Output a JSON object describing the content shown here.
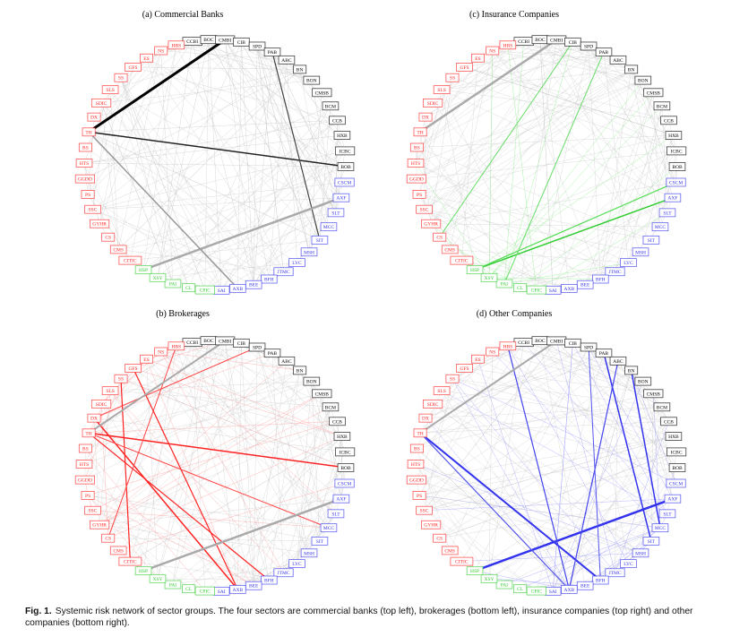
{
  "colors": {
    "banks": "#000000",
    "brokerages": "#ff2020",
    "insurance": "#33cc33",
    "others": "#3333ee",
    "background_edge": "#c8c8c8"
  },
  "nodes": [
    {
      "id": "CCBI",
      "g": "banks"
    },
    {
      "id": "BOC",
      "g": "banks"
    },
    {
      "id": "CMBI",
      "g": "banks"
    },
    {
      "id": "CIB",
      "g": "banks"
    },
    {
      "id": "SPD",
      "g": "banks"
    },
    {
      "id": "PAB",
      "g": "banks"
    },
    {
      "id": "ABC",
      "g": "banks"
    },
    {
      "id": "BN",
      "g": "banks"
    },
    {
      "id": "BON",
      "g": "banks"
    },
    {
      "id": "CMSB",
      "g": "banks"
    },
    {
      "id": "BCM",
      "g": "banks"
    },
    {
      "id": "CCB",
      "g": "banks"
    },
    {
      "id": "HXB",
      "g": "banks"
    },
    {
      "id": "ICBC",
      "g": "banks"
    },
    {
      "id": "BOB",
      "g": "banks"
    },
    {
      "id": "CSCM",
      "g": "others"
    },
    {
      "id": "AXF",
      "g": "others"
    },
    {
      "id": "SLT",
      "g": "others"
    },
    {
      "id": "MCC",
      "g": "others"
    },
    {
      "id": "SIT",
      "g": "others"
    },
    {
      "id": "MSH",
      "g": "others"
    },
    {
      "id": "LYC",
      "g": "others"
    },
    {
      "id": "JTMC",
      "g": "others"
    },
    {
      "id": "BFH",
      "g": "others"
    },
    {
      "id": "BEE",
      "g": "others"
    },
    {
      "id": "AXB",
      "g": "others"
    },
    {
      "id": "SAI",
      "g": "others"
    },
    {
      "id": "CPIC",
      "g": "insurance"
    },
    {
      "id": "CL",
      "g": "insurance"
    },
    {
      "id": "PAI",
      "g": "insurance"
    },
    {
      "id": "XSY",
      "g": "insurance"
    },
    {
      "id": "HSP",
      "g": "insurance"
    },
    {
      "id": "CITIC",
      "g": "brokerages"
    },
    {
      "id": "CMS",
      "g": "brokerages"
    },
    {
      "id": "CS",
      "g": "brokerages"
    },
    {
      "id": "GYHR",
      "g": "brokerages"
    },
    {
      "id": "SSC",
      "g": "brokerages"
    },
    {
      "id": "PS",
      "g": "brokerages"
    },
    {
      "id": "GGDD",
      "g": "brokerages"
    },
    {
      "id": "HTS",
      "g": "brokerages"
    },
    {
      "id": "BS",
      "g": "brokerages"
    },
    {
      "id": "TH",
      "g": "brokerages"
    },
    {
      "id": "DX",
      "g": "brokerages"
    },
    {
      "id": "SDIC",
      "g": "brokerages"
    },
    {
      "id": "SLS",
      "g": "brokerages"
    },
    {
      "id": "SS",
      "g": "brokerages"
    },
    {
      "id": "GFS",
      "g": "brokerages"
    },
    {
      "id": "ES",
      "g": "brokerages"
    },
    {
      "id": "NS",
      "g": "brokerages"
    },
    {
      "id": "HBS",
      "g": "brokerages"
    }
  ],
  "panels": [
    {
      "key": "a",
      "title": "(a) Commercial Banks",
      "group": "banks",
      "edges": [
        [
          "TH",
          "CMBI",
          3,
          "#000"
        ],
        [
          "TH",
          "BOB",
          1.5,
          "#222"
        ],
        [
          "PAB",
          "SIT",
          1.2,
          "#444"
        ],
        [
          "HSP",
          "AXF",
          2.5,
          "#aaa"
        ],
        [
          "TH",
          "AXB",
          1.5,
          "#999"
        ]
      ]
    },
    {
      "key": "b",
      "title": "(b) Brokerages",
      "group": "brokerages",
      "edges": [
        [
          "TH",
          "BOB",
          1.5,
          "#f22"
        ],
        [
          "DX",
          "AXB",
          1.5,
          "#f22"
        ],
        [
          "TH",
          "BFH",
          1.2,
          "#f22"
        ],
        [
          "SS",
          "CITIC",
          1.2,
          "#f22"
        ],
        [
          "DX",
          "SPD",
          1,
          "#f44"
        ],
        [
          "HBS",
          "CS",
          1,
          "#f44"
        ],
        [
          "GFS",
          "AXB",
          1.2,
          "#f22"
        ],
        [
          "TH",
          "MCC",
          1,
          "#f44"
        ],
        [
          "HSP",
          "AXF",
          2.5,
          "#aaa"
        ],
        [
          "TH",
          "CMBI",
          2,
          "#aaa"
        ]
      ]
    },
    {
      "key": "c",
      "title": "(c) Insurance Companies",
      "group": "insurance",
      "edges": [
        [
          "HSP",
          "AXF",
          1.5,
          "#3c3"
        ],
        [
          "HSP",
          "CSCM",
          1.2,
          "#5d5"
        ],
        [
          "CS",
          "CIB",
          1,
          "#6d6"
        ],
        [
          "TH",
          "CMBI",
          2.5,
          "#aaa"
        ],
        [
          "PAI",
          "PAB",
          1,
          "#6d6"
        ]
      ]
    },
    {
      "key": "d",
      "title": "(d) Other Companies",
      "group": "others",
      "edges": [
        [
          "HSP",
          "AXF",
          2.5,
          "#33e"
        ],
        [
          "TH",
          "BFH",
          2,
          "#33e"
        ],
        [
          "PAB",
          "SIT",
          1.5,
          "#33e"
        ],
        [
          "BN",
          "MCC",
          1.5,
          "#33e"
        ],
        [
          "HBS",
          "AXB",
          1.2,
          "#44e"
        ],
        [
          "ABC",
          "AXB",
          1.2,
          "#44e"
        ],
        [
          "SPD",
          "BFH",
          1,
          "#55e"
        ],
        [
          "TH",
          "AXB",
          1.2,
          "#55e"
        ],
        [
          "TH",
          "CMBI",
          2,
          "#aaa"
        ]
      ]
    }
  ],
  "caption": {
    "label": "Fig. 1.",
    "text": "Systemic risk network of sector groups. The four sectors are commercial banks (top left), brokerages (bottom left), insurance companies (top right) and other companies (bottom right)."
  }
}
